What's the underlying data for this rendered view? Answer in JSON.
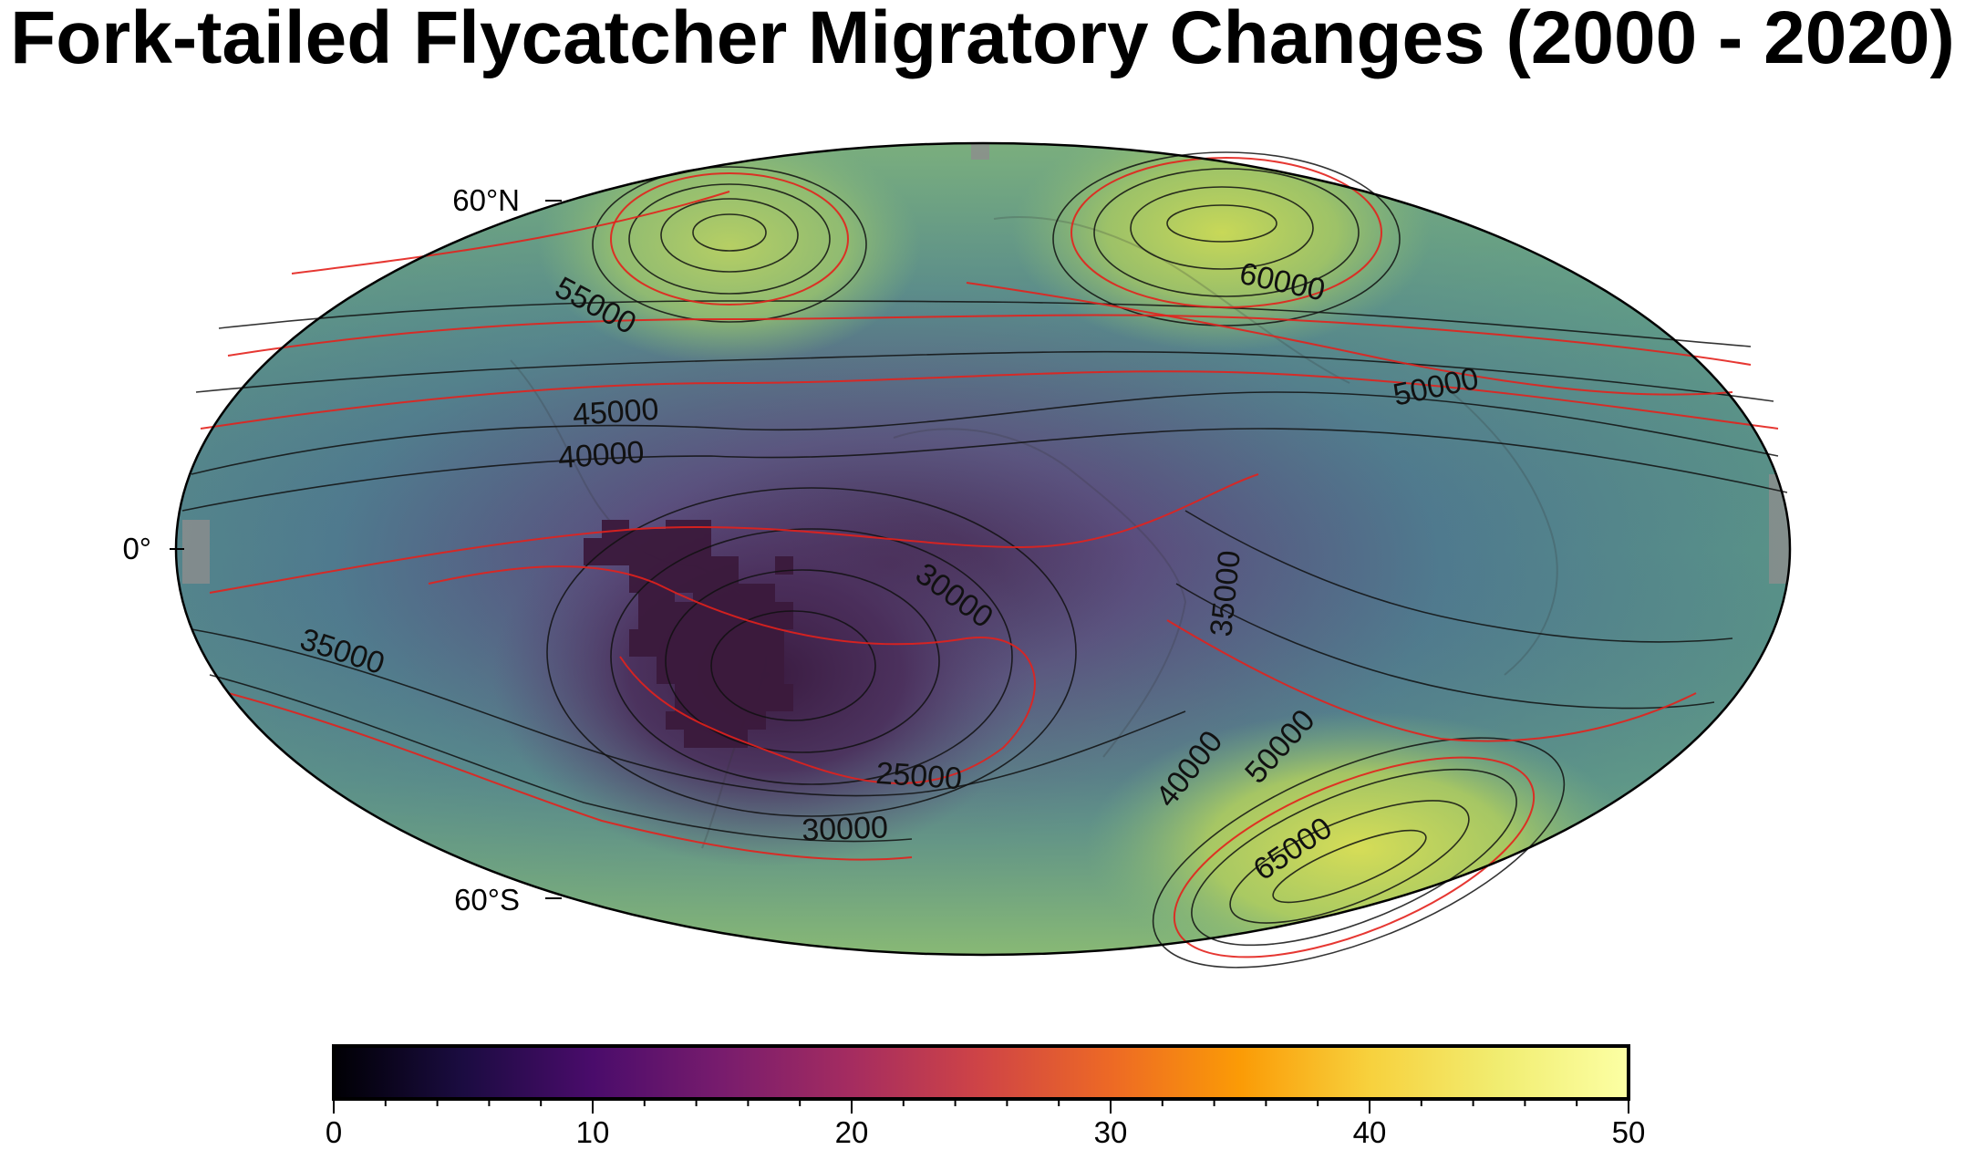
{
  "title": "Fork-tailed Flycatcher Migratory Changes (2000 - 2020)",
  "map": {
    "projection": "hammer-aitoff",
    "background_field": "viridis-like global field, low (purple) over South Atlantic, high (yellow-green) near 60°N and 60°S",
    "latitude_labels": [
      "60°N",
      "0°",
      "60°S"
    ],
    "contour_interval_major_red": 5000,
    "contour_labels": [
      "55000",
      "45000",
      "40000",
      "60000",
      "50000",
      "30000",
      "35000",
      "35000",
      "25000",
      "30000",
      "40000",
      "50000",
      "65000"
    ],
    "colors": {
      "major_contour": "#e3211c",
      "minor_contour": "#111111",
      "low_field": "#3e2a55",
      "high_field": "#c9d85a"
    },
    "occurrence_overlay": "dark purple gridded cells over northern and central-eastern South America"
  },
  "colorbar": {
    "colormap": "inferno",
    "range": [
      0,
      50
    ],
    "tick_labels": [
      "0",
      "10",
      "20",
      "30",
      "40",
      "50"
    ]
  }
}
